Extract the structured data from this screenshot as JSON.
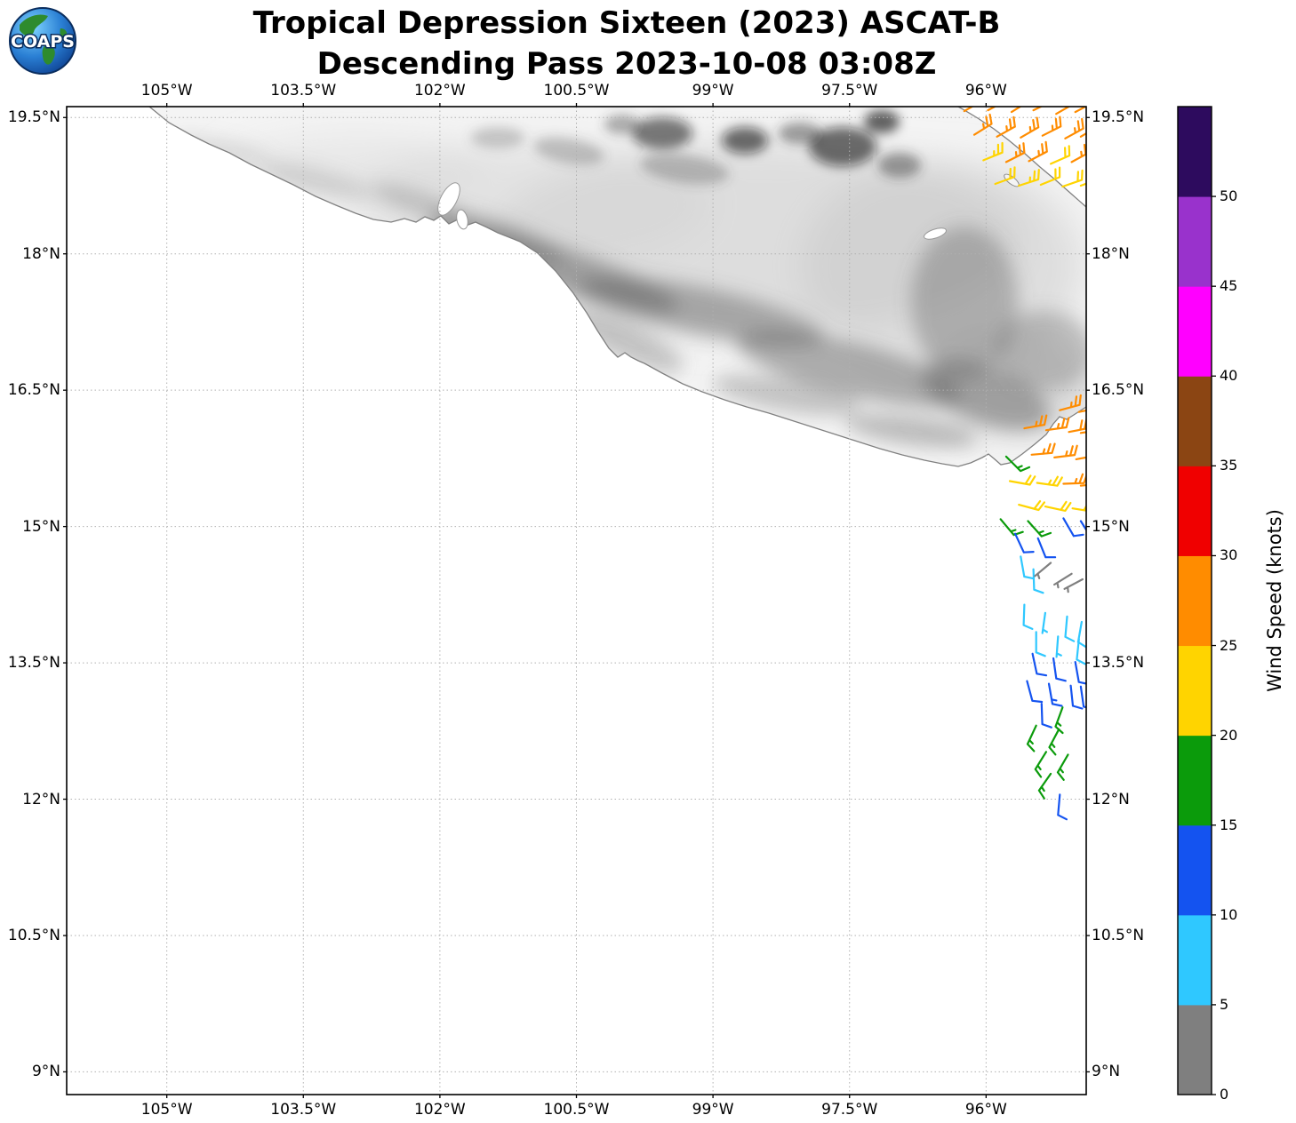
{
  "logo": {
    "text": "COAPS"
  },
  "title": {
    "line1": "Tropical Depression Sixteen (2023) ASCAT-B",
    "line2": "Descending Pass 2023-10-08 03:08Z"
  },
  "chart_data": {
    "type": "scatter",
    "subtype": "satellite-wind-barb-map",
    "title": "Tropical Depression Sixteen (2023) ASCAT-B Descending Pass 2023-10-08 03:08Z",
    "grid": true,
    "x_axis": {
      "range": [
        -106.1,
        -94.9
      ],
      "ticks": [
        {
          "value": -105.0,
          "label": "105°W"
        },
        {
          "value": -103.5,
          "label": "103.5°W"
        },
        {
          "value": -102.0,
          "label": "102°W"
        },
        {
          "value": -100.5,
          "label": "100.5°W"
        },
        {
          "value": -99.0,
          "label": "99°W"
        },
        {
          "value": -97.5,
          "label": "97.5°W"
        },
        {
          "value": -96.0,
          "label": "96°W"
        }
      ]
    },
    "y_axis": {
      "range": [
        8.75,
        19.62
      ],
      "ticks": [
        {
          "value": 19.5,
          "label": "19.5°N"
        },
        {
          "value": 18.0,
          "label": "18°N"
        },
        {
          "value": 16.5,
          "label": "16.5°N"
        },
        {
          "value": 15.0,
          "label": "15°N"
        },
        {
          "value": 13.5,
          "label": "13.5°N"
        },
        {
          "value": 12.0,
          "label": "12°N"
        },
        {
          "value": 10.5,
          "label": "10.5°N"
        },
        {
          "value": 9.0,
          "label": "9°N"
        }
      ]
    },
    "colorbar": {
      "label": "Wind Speed (knots)",
      "range": [
        0,
        55
      ],
      "tick_values": [
        0,
        5,
        10,
        15,
        20,
        25,
        30,
        35,
        40,
        45,
        50
      ],
      "segments": [
        {
          "from": 0,
          "to": 5,
          "color": "#7f7f7f"
        },
        {
          "from": 5,
          "to": 10,
          "color": "#2fc8ff"
        },
        {
          "from": 10,
          "to": 15,
          "color": "#1453f0"
        },
        {
          "from": 15,
          "to": 20,
          "color": "#0b9b0b"
        },
        {
          "from": 20,
          "to": 25,
          "color": "#ffd400"
        },
        {
          "from": 25,
          "to": 30,
          "color": "#ff8c00"
        },
        {
          "from": 30,
          "to": 35,
          "color": "#f00000"
        },
        {
          "from": 35,
          "to": 40,
          "color": "#8b4513"
        },
        {
          "from": 40,
          "to": 45,
          "color": "#ff00ff"
        },
        {
          "from": 45,
          "to": 50,
          "color": "#9932cc"
        },
        {
          "from": 50,
          "to": 55,
          "color": "#2d0b5e"
        }
      ]
    },
    "barb_fields": [
      "lon",
      "lat",
      "speed_knots",
      "wind_from_deg"
    ],
    "wind_barbs": [
      [
        -96.24,
        19.57,
        27,
        60
      ],
      [
        -95.98,
        19.58,
        27,
        62
      ],
      [
        -95.72,
        19.56,
        28,
        58
      ],
      [
        -95.48,
        19.58,
        27,
        64
      ],
      [
        -95.23,
        19.54,
        26,
        60
      ],
      [
        -95.02,
        19.56,
        27,
        62
      ],
      [
        -96.13,
        19.31,
        26,
        58
      ],
      [
        -95.88,
        19.29,
        27,
        61
      ],
      [
        -95.62,
        19.28,
        27,
        60
      ],
      [
        -95.38,
        19.3,
        26,
        63
      ],
      [
        -95.13,
        19.27,
        27,
        61
      ],
      [
        -94.96,
        19.29,
        26,
        59
      ],
      [
        -96.03,
        19.03,
        23,
        68
      ],
      [
        -95.78,
        19.01,
        26,
        63
      ],
      [
        -95.53,
        19.02,
        27,
        62
      ],
      [
        -95.29,
        18.99,
        22,
        66
      ],
      [
        -95.06,
        19.01,
        26,
        61
      ],
      [
        -95.9,
        18.77,
        22,
        70
      ],
      [
        -95.64,
        18.75,
        23,
        72
      ],
      [
        -95.4,
        18.76,
        22,
        68
      ],
      [
        -95.16,
        18.74,
        22,
        71
      ],
      [
        -94.96,
        18.75,
        21,
        69
      ],
      [
        -95.19,
        16.28,
        27,
        75
      ],
      [
        -94.98,
        16.26,
        28,
        78
      ],
      [
        -95.58,
        16.08,
        27,
        80
      ],
      [
        -95.34,
        16.06,
        27,
        82
      ],
      [
        -95.09,
        16.04,
        28,
        79
      ],
      [
        -94.96,
        16.03,
        27,
        81
      ],
      [
        -95.78,
        15.77,
        17,
        135
      ],
      [
        -95.5,
        15.79,
        26,
        85
      ],
      [
        -95.25,
        15.76,
        27,
        83
      ],
      [
        -95.01,
        15.74,
        27,
        80
      ],
      [
        -95.74,
        15.5,
        22,
        100
      ],
      [
        -95.44,
        15.48,
        23,
        98
      ],
      [
        -95.15,
        15.47,
        26,
        88
      ],
      [
        -94.96,
        15.45,
        27,
        85
      ],
      [
        -95.64,
        15.24,
        22,
        105
      ],
      [
        -95.35,
        15.22,
        22,
        102
      ],
      [
        -95.05,
        15.2,
        23,
        99
      ],
      [
        -95.84,
        15.08,
        17,
        140
      ],
      [
        -95.54,
        15.06,
        16,
        138
      ],
      [
        -95.15,
        15.09,
        12,
        150
      ],
      [
        -94.96,
        15.06,
        12,
        148
      ],
      [
        -95.68,
        14.92,
        12,
        155
      ],
      [
        -95.43,
        14.87,
        11,
        158
      ],
      [
        -95.62,
        14.67,
        8,
        170
      ],
      [
        -95.48,
        14.53,
        8,
        178
      ],
      [
        -95.29,
        14.6,
        3,
        230
      ],
      [
        -95.06,
        14.48,
        4,
        238
      ],
      [
        -94.94,
        14.42,
        3,
        242
      ],
      [
        -95.58,
        14.14,
        8,
        182
      ],
      [
        -95.35,
        14.05,
        7,
        188
      ],
      [
        -95.11,
        14.01,
        8,
        185
      ],
      [
        -94.95,
        13.95,
        8,
        190
      ],
      [
        -95.45,
        13.84,
        8,
        180
      ],
      [
        -95.21,
        13.79,
        7,
        184
      ],
      [
        -94.98,
        13.76,
        8,
        186
      ],
      [
        -95.49,
        13.6,
        12,
        168
      ],
      [
        -95.26,
        13.55,
        12,
        172
      ],
      [
        -95.02,
        13.51,
        11,
        170
      ],
      [
        -95.55,
        13.3,
        12,
        165
      ],
      [
        -95.31,
        13.27,
        13,
        170
      ],
      [
        -95.07,
        13.25,
        12,
        174
      ],
      [
        -94.96,
        13.24,
        11,
        172
      ],
      [
        -95.39,
        13.05,
        12,
        178
      ],
      [
        -95.16,
        13.01,
        16,
        200
      ],
      [
        -95.45,
        12.81,
        17,
        205
      ],
      [
        -95.2,
        12.77,
        16,
        208
      ],
      [
        -95.34,
        12.52,
        17,
        212
      ],
      [
        -95.1,
        12.49,
        16,
        210
      ],
      [
        -95.29,
        12.28,
        17,
        215
      ],
      [
        -95.19,
        12.05,
        12,
        185
      ]
    ]
  }
}
